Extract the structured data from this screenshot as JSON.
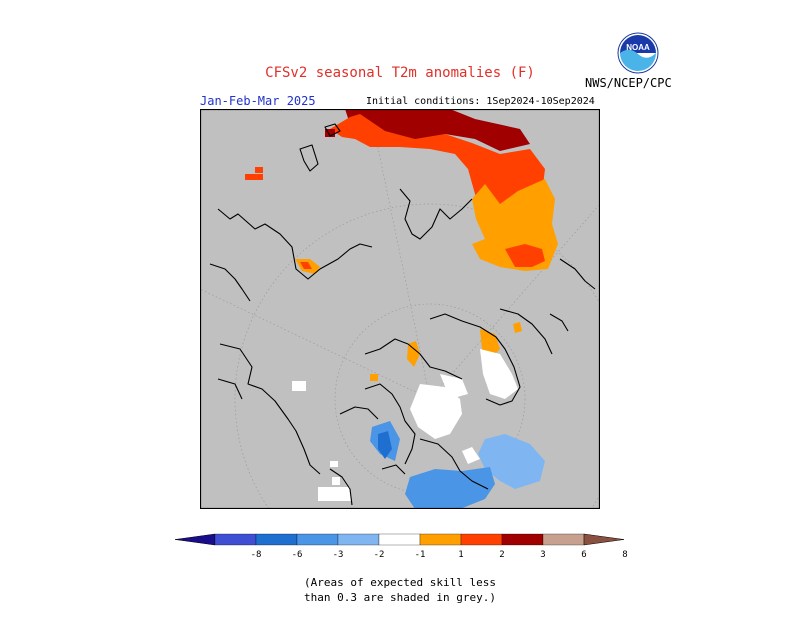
{
  "header": {
    "title": "CFSv2 seasonal T2m anomalies (F)",
    "agency": "NWS/NCEP/CPC",
    "season": "Jan-Feb-Mar 2025",
    "initial_conditions": "Initial conditions: 1Sep2024-10Sep2024",
    "logo_text": "NOAA"
  },
  "colorbar": {
    "tick_labels": [
      "-8",
      "-6",
      "-3",
      "-2",
      "-1",
      "1",
      "2",
      "3",
      "6",
      "8"
    ],
    "colors": [
      "#1a0d8c",
      "#3f4fd4",
      "#1f6fd0",
      "#4a95e6",
      "#7fb6f2",
      "#ffffff",
      "#ffa000",
      "#ff4000",
      "#a00000",
      "#c8a090",
      "#8a5040"
    ]
  },
  "map": {
    "background_color": "#c0c0c0",
    "projection": "north-polar-stereographic"
  },
  "footnote": {
    "line1": "(Areas of expected skill less",
    "line2": "than 0.3 are shaded in grey.)"
  }
}
